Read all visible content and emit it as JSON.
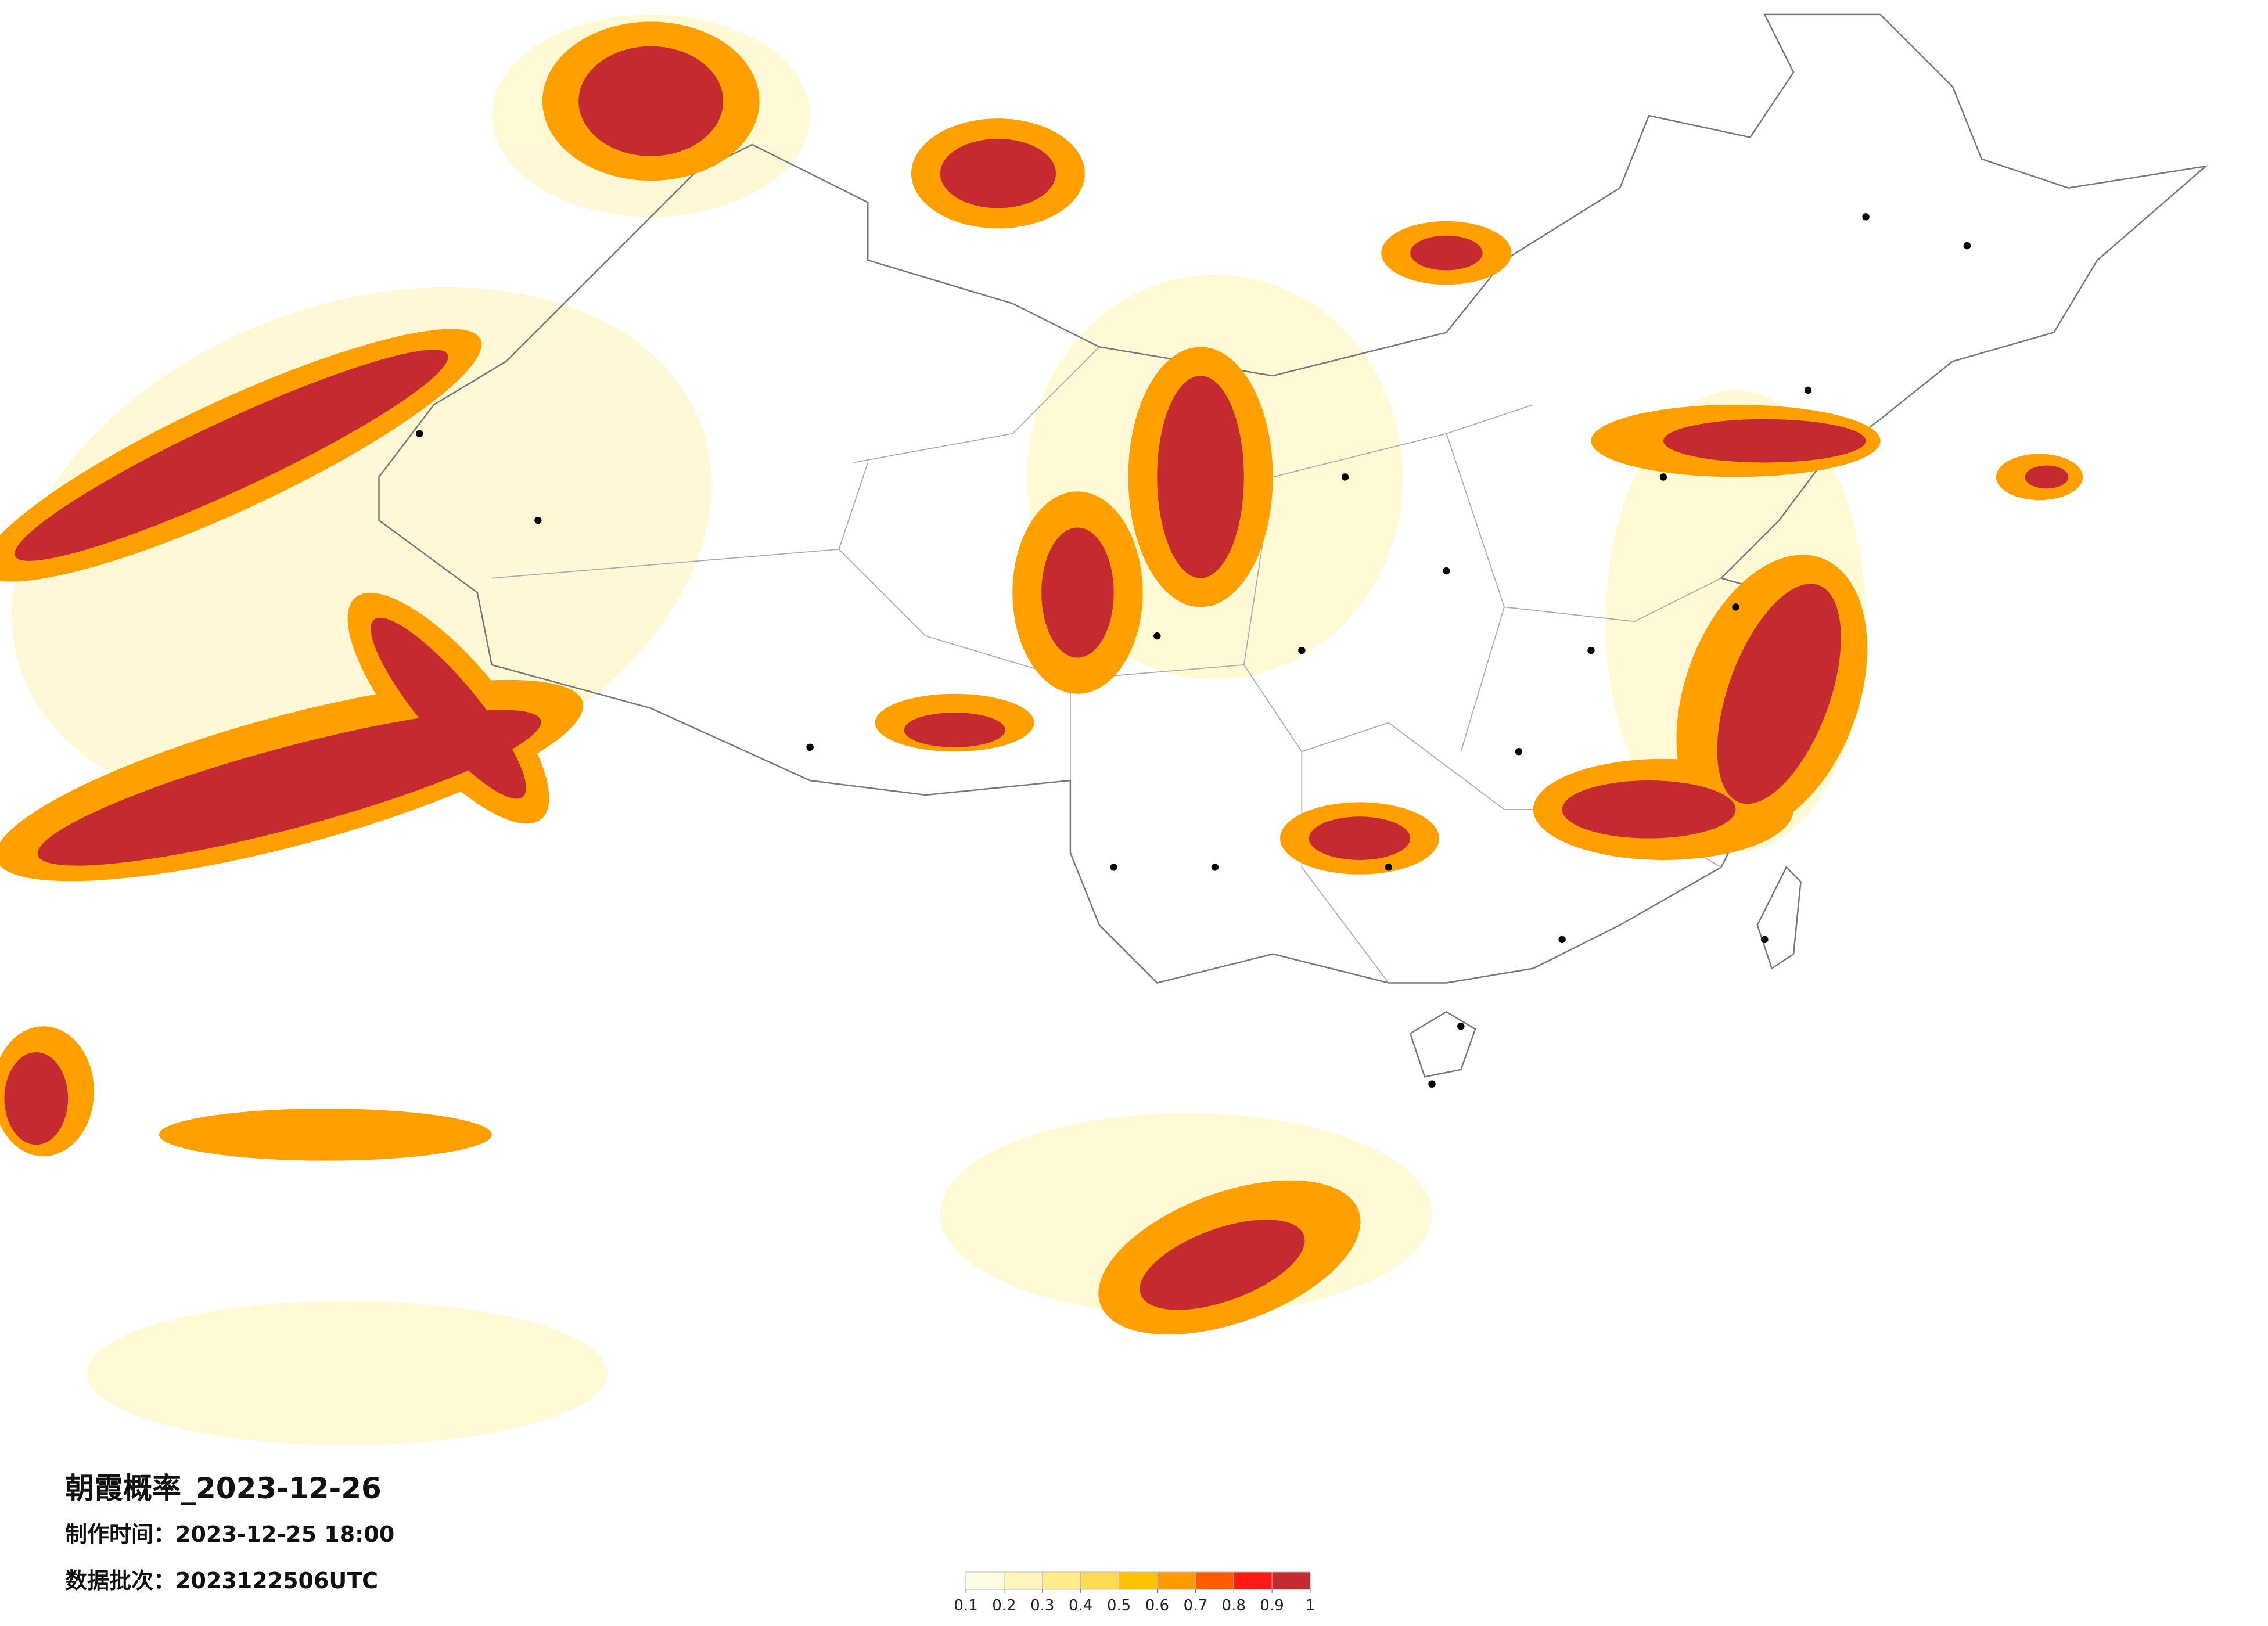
{
  "map": {
    "title": "朝霞概率_2023-12-26",
    "production_time": "制作时间：2023-12-25 18:00",
    "data_batch": "数据批次：2023122506UTC",
    "colorbar": {
      "ticks": [
        0.1,
        0.2,
        0.3,
        0.4,
        0.5,
        0.6,
        0.7,
        0.8,
        0.9,
        1
      ],
      "colors": [
        "#fffce6",
        "#fff5bd",
        "#ffec8a",
        "#ffdb52",
        "#ffc200",
        "#ff9a00",
        "#ff5c00",
        "#ff1a14",
        "#c42a2f"
      ]
    }
  }
}
